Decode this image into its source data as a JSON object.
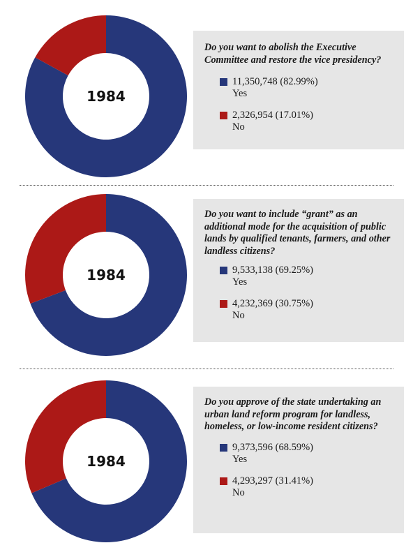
{
  "colors": {
    "yes": "#26377a",
    "no": "#ac1917",
    "box": "#e6e6e6"
  },
  "chart_data": [
    {
      "type": "pie",
      "center_label": "1984",
      "question": "Do you want to abolish the Executive Committee and restore the vice presidency?",
      "slices": [
        {
          "label": "Yes",
          "value": 11350748,
          "value_text": "11,350,748 (82.99%)",
          "percent": 82.99
        },
        {
          "label": "No",
          "value": 2326954,
          "value_text": "2,326,954 (17.01%)",
          "percent": 17.01
        }
      ]
    },
    {
      "type": "pie",
      "center_label": "1984",
      "question": "Do you want to include “grant” as an additional mode for the acquisition of public lands by qualified tenants, farmers, and other landless citizens?",
      "slices": [
        {
          "label": "Yes",
          "value": 9533138,
          "value_text": "9,533,138 (69.25%)",
          "percent": 69.25
        },
        {
          "label": "No",
          "value": 4232369,
          "value_text": "4,232,369 (30.75%)",
          "percent": 30.75
        }
      ]
    },
    {
      "type": "pie",
      "center_label": "1984",
      "question": "Do you approve of the state undertaking an urban land reform program for landless, homeless, or low-income resident citizens?",
      "slices": [
        {
          "label": "Yes",
          "value": 9373596,
          "value_text": "9,373,596 (68.59%)",
          "percent": 68.59
        },
        {
          "label": "No",
          "value": 4293297,
          "value_text": "4,293,297 (31.41%)",
          "percent": 31.41
        }
      ]
    }
  ]
}
